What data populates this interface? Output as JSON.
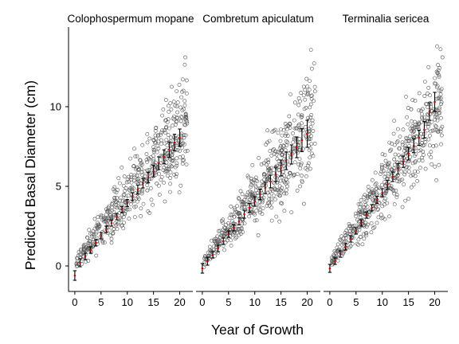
{
  "chart_data": {
    "type": "scatter",
    "xlabel": "Year of Growth",
    "ylabel": "Predicted Basal Diameter (cm)",
    "xlim": [
      -1.2,
      22.5
    ],
    "ylim": [
      -1.6,
      15.0
    ],
    "x_ticks": [
      0,
      5,
      10,
      15,
      20
    ],
    "y_ticks": [
      0,
      5,
      10
    ],
    "grid": false,
    "facets": [
      {
        "title": "Colophospermum mopane",
        "mean_series": {
          "x": [
            0,
            1,
            2,
            3,
            4,
            5,
            6,
            7,
            8,
            9,
            10,
            11,
            12,
            13,
            14,
            15,
            16,
            17,
            18,
            19,
            20
          ],
          "y": [
            -0.6,
            0.2,
            0.6,
            1.0,
            1.45,
            1.9,
            2.3,
            2.7,
            3.1,
            3.55,
            3.95,
            4.35,
            4.8,
            5.2,
            5.55,
            5.95,
            6.45,
            6.85,
            7.3,
            7.75,
            8.05
          ],
          "err": [
            0.3,
            0.25,
            0.2,
            0.2,
            0.2,
            0.2,
            0.2,
            0.2,
            0.2,
            0.2,
            0.22,
            0.25,
            0.28,
            0.3,
            0.33,
            0.36,
            0.4,
            0.44,
            0.48,
            0.52,
            0.55
          ]
        },
        "scatter": {
          "slope": 0.42,
          "intercept": 0.15,
          "spread_base": 0.25,
          "spread_slope": 0.11,
          "x_max": 21.5,
          "y_max": 14.0
        }
      },
      {
        "title": "Combretum apiculatum",
        "mean_series": {
          "x": [
            0,
            1,
            2,
            3,
            4,
            5,
            6,
            7,
            8,
            9,
            10,
            11,
            12,
            13,
            14,
            15,
            16,
            17,
            18,
            19,
            20
          ],
          "y": [
            -0.15,
            0.3,
            0.7,
            1.1,
            1.55,
            2.0,
            2.4,
            2.8,
            3.25,
            3.65,
            4.05,
            4.5,
            4.9,
            5.3,
            5.75,
            6.15,
            6.6,
            7.0,
            7.45,
            7.9,
            8.3
          ],
          "err": [
            0.3,
            0.25,
            0.2,
            0.2,
            0.2,
            0.2,
            0.2,
            0.22,
            0.25,
            0.28,
            0.3,
            0.33,
            0.36,
            0.4,
            0.45,
            0.5,
            0.55,
            0.6,
            0.65,
            0.72,
            0.85
          ]
        },
        "scatter": {
          "slope": 0.42,
          "intercept": 0.2,
          "spread_base": 0.25,
          "spread_slope": 0.12,
          "x_max": 21.5,
          "y_max": 14.0
        }
      },
      {
        "title": "Terminalia sericea",
        "mean_series": {
          "x": [
            0,
            1,
            2,
            3,
            4,
            5,
            6,
            7,
            8,
            9,
            10,
            11,
            12,
            13,
            14,
            15,
            16,
            17,
            18,
            19,
            20
          ],
          "y": [
            -0.15,
            0.3,
            0.75,
            1.2,
            1.7,
            2.2,
            2.7,
            3.2,
            3.65,
            4.15,
            4.6,
            5.1,
            5.6,
            6.1,
            6.55,
            7.05,
            7.55,
            8.05,
            8.55,
            9.7,
            10.3
          ],
          "err": [
            0.25,
            0.2,
            0.2,
            0.2,
            0.2,
            0.2,
            0.2,
            0.2,
            0.2,
            0.22,
            0.25,
            0.28,
            0.3,
            0.33,
            0.36,
            0.4,
            0.44,
            0.48,
            0.52,
            0.55,
            0.6
          ]
        },
        "scatter": {
          "slope": 0.47,
          "intercept": 0.2,
          "spread_base": 0.25,
          "spread_slope": 0.12,
          "x_max": 21.5,
          "y_max": 14.0
        }
      }
    ]
  }
}
